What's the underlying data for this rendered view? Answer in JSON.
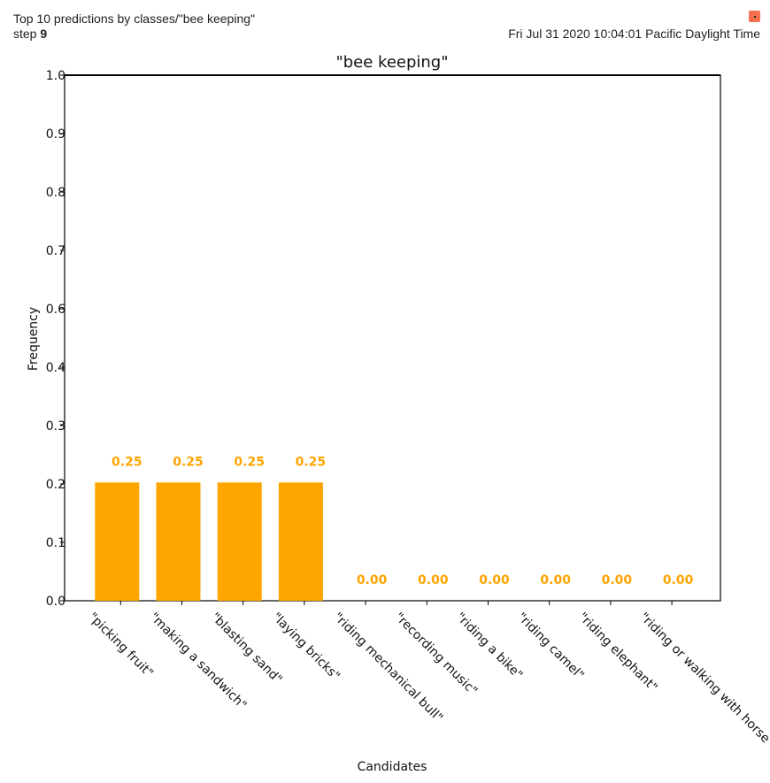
{
  "card": {
    "title": "Top 10 predictions by classes/\"bee keeping\"",
    "step_label": "step",
    "step_value": "9",
    "timestamp": "Fri Jul 31 2020 10:04:01 Pacific Daylight Time",
    "expand_icon": "expand-icon",
    "accent_color": "#f4704f"
  },
  "chart_data": {
    "type": "bar",
    "title": "\"bee keeping\"",
    "xlabel": "Candidates",
    "ylabel": "Frequency",
    "categories": [
      "\"picking fruit\"",
      "\"making a sandwich\"",
      "\"blasting sand\"",
      "\"laying bricks\"",
      "\"riding mechanical bull\"",
      "\"recording music\"",
      "\"riding a bike\"",
      "\"riding camel\"",
      "\"riding elephant\"",
      "\"riding or walking with horse\""
    ],
    "values": [
      0.25,
      0.25,
      0.25,
      0.25,
      0.0,
      0.0,
      0.0,
      0.0,
      0.0,
      0.0
    ],
    "value_labels": [
      "0.25",
      "0.25",
      "0.25",
      "0.25",
      "0.00",
      "0.00",
      "0.00",
      "0.00",
      "0.00",
      "0.00"
    ],
    "yticks": [
      "0.0",
      "0.1",
      "0.2",
      "0.3",
      "0.4",
      "0.6",
      "0.7",
      "0.8",
      "0.9",
      "1.0"
    ],
    "ylim": [
      0,
      1.0
    ],
    "grid": false,
    "bar_color": "#ffa500",
    "label_color": "#ffa500"
  }
}
